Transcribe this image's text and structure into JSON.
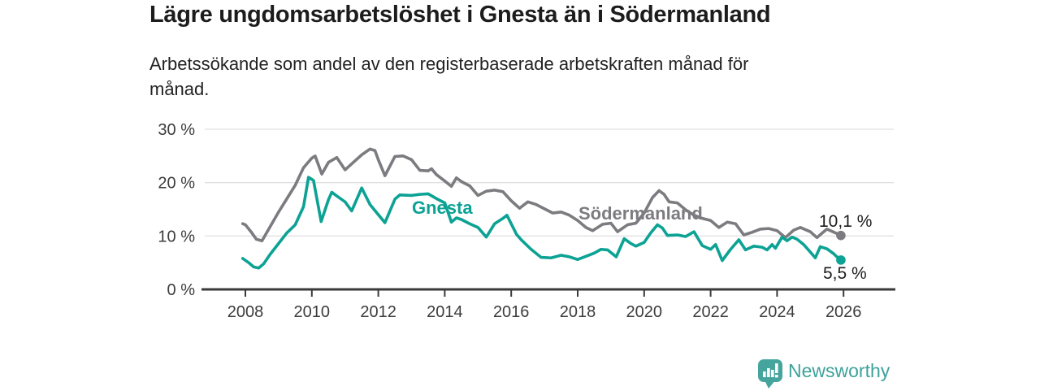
{
  "header": {
    "title": "Lägre ungdomsarbetslöshet i Gnesta än i Södermanland",
    "subtitle": "Arbetssökande som andel av den registerbaserade arbetskraften månad för\nmånad."
  },
  "chart_data": {
    "type": "line",
    "title": "Lägre ungdomsarbetslöshet i Gnesta än i Södermanland",
    "subtitle": "Arbetssökande som andel av den registerbaserade arbetskraften månad för månad.",
    "xlabel": "",
    "ylabel": "%",
    "x_unit": "decimal year (monthly data)",
    "xlim": [
      2006.7,
      2027.5
    ],
    "ylim": [
      0,
      31.5
    ],
    "grid": "horizontal",
    "legend_position": "inline-labels",
    "yticks": [
      0,
      10,
      20,
      30
    ],
    "y_tick_suffix": " %",
    "xticks": [
      2008,
      2010,
      2012,
      2014,
      2016,
      2018,
      2020,
      2022,
      2024,
      2026
    ],
    "colors": {
      "grid": "#e0e0e0",
      "axis": "#3a3a3a",
      "tick_text": "#3c3c3c",
      "end_label_text": "#1c1c1c"
    },
    "series": [
      {
        "name": "Södermanland",
        "color": "#7b7b80",
        "end_label": "10,1 %",
        "last_value": 10.1,
        "points": [
          [
            2007.92,
            12.3
          ],
          [
            2008.0,
            12.1
          ],
          [
            2008.17,
            10.8
          ],
          [
            2008.33,
            9.4
          ],
          [
            2008.5,
            9.1
          ],
          [
            2008.75,
            11.8
          ],
          [
            2009.0,
            14.5
          ],
          [
            2009.25,
            17.0
          ],
          [
            2009.5,
            19.5
          ],
          [
            2009.75,
            22.8
          ],
          [
            2010.0,
            24.6
          ],
          [
            2010.1,
            25.0
          ],
          [
            2010.3,
            21.6
          ],
          [
            2010.5,
            23.8
          ],
          [
            2010.75,
            24.7
          ],
          [
            2011.0,
            22.4
          ],
          [
            2011.25,
            23.8
          ],
          [
            2011.5,
            25.2
          ],
          [
            2011.75,
            26.3
          ],
          [
            2011.9,
            26.0
          ],
          [
            2012.0,
            24.3
          ],
          [
            2012.2,
            21.3
          ],
          [
            2012.5,
            24.9
          ],
          [
            2012.75,
            25.0
          ],
          [
            2013.0,
            24.3
          ],
          [
            2013.25,
            22.3
          ],
          [
            2013.5,
            22.2
          ],
          [
            2013.6,
            22.6
          ],
          [
            2013.75,
            21.5
          ],
          [
            2014.0,
            20.3
          ],
          [
            2014.2,
            19.3
          ],
          [
            2014.35,
            20.9
          ],
          [
            2014.5,
            20.2
          ],
          [
            2014.75,
            19.4
          ],
          [
            2015.0,
            17.6
          ],
          [
            2015.25,
            18.4
          ],
          [
            2015.5,
            18.6
          ],
          [
            2015.75,
            18.3
          ],
          [
            2016.0,
            16.6
          ],
          [
            2016.25,
            15.2
          ],
          [
            2016.5,
            16.4
          ],
          [
            2016.75,
            15.9
          ],
          [
            2017.0,
            15.1
          ],
          [
            2017.25,
            14.3
          ],
          [
            2017.5,
            14.5
          ],
          [
            2017.75,
            13.9
          ],
          [
            2018.0,
            12.9
          ],
          [
            2018.25,
            11.6
          ],
          [
            2018.45,
            11.0
          ],
          [
            2018.75,
            12.2
          ],
          [
            2019.0,
            12.4
          ],
          [
            2019.2,
            10.8
          ],
          [
            2019.5,
            12.1
          ],
          [
            2019.75,
            12.4
          ],
          [
            2020.0,
            14.3
          ],
          [
            2020.25,
            17.2
          ],
          [
            2020.45,
            18.5
          ],
          [
            2020.6,
            17.8
          ],
          [
            2020.75,
            16.4
          ],
          [
            2021.0,
            16.2
          ],
          [
            2021.25,
            14.9
          ],
          [
            2021.5,
            13.9
          ],
          [
            2021.75,
            13.3
          ],
          [
            2022.0,
            12.9
          ],
          [
            2022.25,
            11.6
          ],
          [
            2022.5,
            12.6
          ],
          [
            2022.75,
            12.3
          ],
          [
            2023.0,
            10.2
          ],
          [
            2023.25,
            10.7
          ],
          [
            2023.5,
            11.3
          ],
          [
            2023.75,
            11.4
          ],
          [
            2024.0,
            11.0
          ],
          [
            2024.25,
            9.7
          ],
          [
            2024.5,
            11.1
          ],
          [
            2024.7,
            11.6
          ],
          [
            2025.0,
            10.8
          ],
          [
            2025.2,
            9.7
          ],
          [
            2025.5,
            11.3
          ],
          [
            2025.75,
            10.6
          ],
          [
            2025.92,
            10.1
          ]
        ]
      },
      {
        "name": "Gnesta",
        "color": "#0ca294",
        "end_label": "5,5 %",
        "last_value": 5.5,
        "points": [
          [
            2007.92,
            5.8
          ],
          [
            2008.1,
            5.0
          ],
          [
            2008.25,
            4.2
          ],
          [
            2008.4,
            4.0
          ],
          [
            2008.55,
            4.8
          ],
          [
            2008.75,
            6.6
          ],
          [
            2009.0,
            8.6
          ],
          [
            2009.25,
            10.6
          ],
          [
            2009.5,
            12.1
          ],
          [
            2009.75,
            15.5
          ],
          [
            2009.9,
            21.0
          ],
          [
            2010.05,
            20.4
          ],
          [
            2010.28,
            12.7
          ],
          [
            2010.5,
            16.8
          ],
          [
            2010.6,
            18.2
          ],
          [
            2010.75,
            17.5
          ],
          [
            2011.0,
            16.4
          ],
          [
            2011.2,
            14.7
          ],
          [
            2011.5,
            19.0
          ],
          [
            2011.75,
            15.9
          ],
          [
            2012.0,
            14.0
          ],
          [
            2012.2,
            12.5
          ],
          [
            2012.5,
            16.9
          ],
          [
            2012.65,
            17.7
          ],
          [
            2013.0,
            17.6
          ],
          [
            2013.25,
            17.8
          ],
          [
            2013.5,
            17.9
          ],
          [
            2013.75,
            17.0
          ],
          [
            2014.0,
            16.2
          ],
          [
            2014.2,
            12.6
          ],
          [
            2014.35,
            13.4
          ],
          [
            2014.5,
            13.1
          ],
          [
            2014.75,
            12.3
          ],
          [
            2015.0,
            11.6
          ],
          [
            2015.25,
            9.8
          ],
          [
            2015.5,
            12.3
          ],
          [
            2015.75,
            13.3
          ],
          [
            2015.87,
            13.9
          ],
          [
            2016.16,
            10.3
          ],
          [
            2016.3,
            9.3
          ],
          [
            2016.6,
            7.5
          ],
          [
            2016.9,
            6.0
          ],
          [
            2017.2,
            5.9
          ],
          [
            2017.5,
            6.4
          ],
          [
            2017.75,
            6.1
          ],
          [
            2018.0,
            5.6
          ],
          [
            2018.25,
            6.2
          ],
          [
            2018.5,
            6.8
          ],
          [
            2018.7,
            7.5
          ],
          [
            2018.9,
            7.4
          ],
          [
            2019.16,
            6.1
          ],
          [
            2019.4,
            9.5
          ],
          [
            2019.6,
            8.6
          ],
          [
            2019.75,
            8.1
          ],
          [
            2020.0,
            8.8
          ],
          [
            2020.2,
            10.6
          ],
          [
            2020.4,
            12.1
          ],
          [
            2020.55,
            11.5
          ],
          [
            2020.7,
            10.1
          ],
          [
            2021.0,
            10.2
          ],
          [
            2021.25,
            9.9
          ],
          [
            2021.5,
            10.8
          ],
          [
            2021.75,
            8.2
          ],
          [
            2022.0,
            7.5
          ],
          [
            2022.15,
            8.4
          ],
          [
            2022.35,
            5.4
          ],
          [
            2022.6,
            7.5
          ],
          [
            2022.85,
            9.3
          ],
          [
            2023.05,
            7.4
          ],
          [
            2023.3,
            8.1
          ],
          [
            2023.55,
            7.9
          ],
          [
            2023.7,
            7.4
          ],
          [
            2023.85,
            8.4
          ],
          [
            2023.95,
            7.7
          ],
          [
            2024.15,
            9.8
          ],
          [
            2024.3,
            9.1
          ],
          [
            2024.45,
            9.8
          ],
          [
            2024.6,
            9.4
          ],
          [
            2024.8,
            8.4
          ],
          [
            2025.0,
            7.0
          ],
          [
            2025.15,
            5.9
          ],
          [
            2025.3,
            8.0
          ],
          [
            2025.5,
            7.6
          ],
          [
            2025.7,
            6.7
          ],
          [
            2025.8,
            6.1
          ],
          [
            2025.92,
            5.5
          ]
        ]
      }
    ]
  },
  "logo": {
    "text": "Newsworthy",
    "color": "#3da29b",
    "icon": "bar-chart-speech-bubble-icon",
    "icon_color": "#45a59d",
    "icon_bar_color": "#ffffff"
  }
}
